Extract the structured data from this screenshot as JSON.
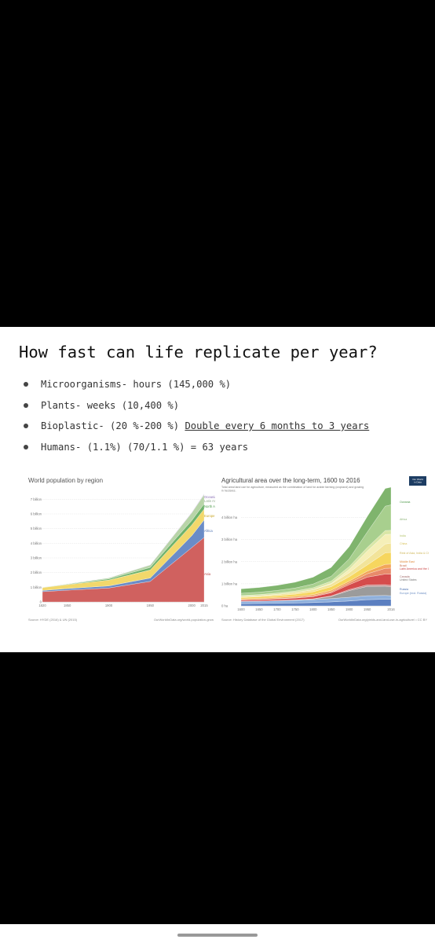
{
  "slide": {
    "title": "How fast can life replicate per year?",
    "bullets": [
      {
        "text": "Microorganisms- hours (145,000 %)",
        "link": ""
      },
      {
        "text": "Plants- weeks (10,400 %)",
        "link": ""
      },
      {
        "text": "Bioplastic- (20 %-200 %) ",
        "link": "Double every 6 months to 3 years"
      },
      {
        "text": "Humans- (1.1%) (70/1.1 %) = 63 years",
        "link": ""
      }
    ]
  },
  "chart_data": [
    {
      "type": "area",
      "title": "World population by region",
      "x": [
        1820,
        1850,
        1900,
        1950,
        2000,
        2015
      ],
      "xticks": [
        "1820",
        "1850",
        "1900",
        "1950",
        "2000",
        "2015"
      ],
      "yticks": [
        "0",
        "1 billion",
        "2 billion",
        "3 billion",
        "4 billion",
        "5 billion",
        "6 billion",
        "7 billion"
      ],
      "ylim": [
        0,
        7.5
      ],
      "series": [
        {
          "name": "Asia",
          "color": "#d0615f",
          "values": [
            0.7,
            0.8,
            0.95,
            1.4,
            3.7,
            4.4
          ]
        },
        {
          "name": "Africa",
          "color": "#6a8cc7",
          "values": [
            0.08,
            0.11,
            0.14,
            0.23,
            0.81,
            1.19
          ]
        },
        {
          "name": "Europe",
          "color": "#f2d86b",
          "values": [
            0.2,
            0.27,
            0.4,
            0.55,
            0.73,
            0.74
          ]
        },
        {
          "name": "North America",
          "color": "#6fb36b",
          "values": [
            0.01,
            0.03,
            0.08,
            0.17,
            0.31,
            0.36
          ]
        },
        {
          "name": "Latin America",
          "color": "#b8d4a8",
          "values": [
            0.02,
            0.03,
            0.07,
            0.17,
            0.52,
            0.63
          ]
        },
        {
          "name": "Oceania",
          "color": "#a78bc9",
          "values": [
            0.002,
            0.002,
            0.006,
            0.013,
            0.031,
            0.039
          ]
        }
      ],
      "labels": [
        "Oceania",
        "Latin Am",
        "North Am",
        "Europe",
        "Africa",
        "Asia"
      ],
      "source": "Source: HYDE (2016) & UN (2015)",
      "credit": "OurWorldInData.org/world-population-grow"
    },
    {
      "type": "area",
      "title": "Agricultural area over the long-term, 1600 to 2016",
      "subtitle": "Total areal land use for agriculture, measured as the combination of land for arable farming (cropland) and grazing in hectares.",
      "logo": "Our World in Data",
      "x": [
        1600,
        1650,
        1700,
        1750,
        1800,
        1850,
        1900,
        1950,
        2000,
        2016
      ],
      "xticks": [
        "1600",
        "1650",
        "1700",
        "1750",
        "1800",
        "1850",
        "1900",
        "1950",
        "2016"
      ],
      "yticks": [
        "0 ha",
        "1 billion ha",
        "2 billion ha",
        "3 billion ha",
        "4 billion ha"
      ],
      "ylim": [
        0,
        4.8
      ],
      "series": [
        {
          "name": "Russia",
          "color": "#5b7fc0",
          "values": [
            0.1,
            0.11,
            0.12,
            0.13,
            0.15,
            0.18,
            0.22,
            0.28,
            0.3,
            0.3
          ]
        },
        {
          "name": "Europe (excl. Russia)",
          "color": "#8fb0dc",
          "values": [
            0.1,
            0.1,
            0.11,
            0.12,
            0.13,
            0.15,
            0.17,
            0.18,
            0.17,
            0.16
          ]
        },
        {
          "name": "United States",
          "color": "#9b9b9b",
          "values": [
            0.01,
            0.01,
            0.01,
            0.02,
            0.03,
            0.1,
            0.3,
            0.42,
            0.42,
            0.4
          ]
        },
        {
          "name": "Canada",
          "color": "#c88f8f",
          "values": [
            0.0,
            0.0,
            0.0,
            0.0,
            0.01,
            0.02,
            0.05,
            0.07,
            0.07,
            0.07
          ]
        },
        {
          "name": "Latin America and the Caribbean (excl. Brazil)",
          "color": "#d54c4c",
          "values": [
            0.05,
            0.06,
            0.07,
            0.08,
            0.1,
            0.14,
            0.22,
            0.35,
            0.48,
            0.5
          ]
        },
        {
          "name": "Brazil",
          "color": "#e88a6a",
          "values": [
            0.01,
            0.01,
            0.02,
            0.02,
            0.03,
            0.05,
            0.08,
            0.15,
            0.26,
            0.28
          ]
        },
        {
          "name": "Middle East",
          "color": "#f2a65a",
          "values": [
            0.05,
            0.05,
            0.05,
            0.06,
            0.06,
            0.07,
            0.08,
            0.12,
            0.18,
            0.18
          ]
        },
        {
          "name": "China",
          "color": "#f6d65e",
          "values": [
            0.06,
            0.07,
            0.08,
            0.1,
            0.13,
            0.16,
            0.2,
            0.28,
            0.52,
            0.53
          ]
        },
        {
          "name": "Rest of Asia (excl. India & China)",
          "color": "#f2e49a",
          "values": [
            0.04,
            0.05,
            0.06,
            0.07,
            0.09,
            0.12,
            0.18,
            0.28,
            0.4,
            0.42
          ]
        },
        {
          "name": "Oceania",
          "color": "#f5efb8",
          "values": [
            0.0,
            0.0,
            0.0,
            0.0,
            0.01,
            0.03,
            0.15,
            0.35,
            0.43,
            0.4
          ]
        },
        {
          "name": "India",
          "color": "#d9e6a6",
          "values": [
            0.05,
            0.05,
            0.06,
            0.07,
            0.08,
            0.1,
            0.13,
            0.16,
            0.18,
            0.18
          ]
        },
        {
          "name": "Africa",
          "color": "#a8cf8e",
          "values": [
            0.1,
            0.11,
            0.12,
            0.14,
            0.17,
            0.22,
            0.35,
            0.7,
            1.1,
            1.15
          ]
        },
        {
          "name": "Grassland",
          "color": "#7fb46d",
          "values": [
            0.2,
            0.21,
            0.23,
            0.26,
            0.31,
            0.4,
            0.55,
            0.7,
            0.8,
            0.8
          ]
        }
      ],
      "labels": [
        "Oceania",
        "Africa",
        "India",
        "China",
        "Rest of Asia, India & China",
        "Middle East",
        "Brazil",
        "Latin America and the Caribbean (excl. Brazil)",
        "Canada",
        "United States",
        "Russia",
        "Europe (excl. Russia)"
      ],
      "source": "Source: History Database of the Global Environment (2017)",
      "credit": "OurWorldInData.org/yields-and-land-use-in-agriculture/ • CC BY"
    }
  ]
}
